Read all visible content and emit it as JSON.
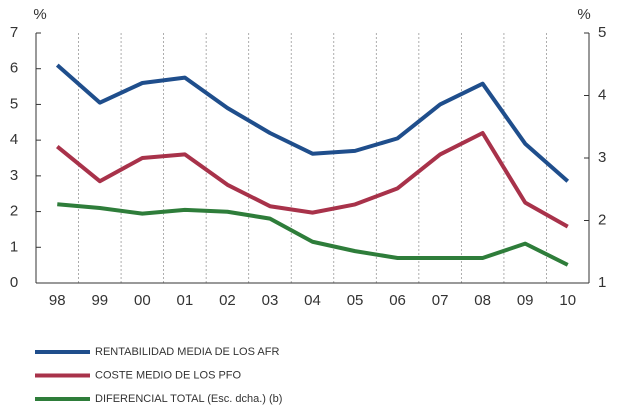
{
  "chart_data": {
    "type": "line",
    "y_label": "%",
    "y2_label": "%",
    "categories": [
      "98",
      "99",
      "00",
      "01",
      "02",
      "03",
      "04",
      "05",
      "06",
      "07",
      "08",
      "09",
      "10"
    ],
    "series": [
      {
        "name": "RENTABILIDAD MEDIA DE LOS AFR",
        "color": "#1f4e8c",
        "values": [
          6.1,
          5.05,
          5.6,
          5.75,
          4.9,
          4.2,
          3.62,
          3.7,
          4.05,
          5.0,
          5.58,
          3.9,
          2.85
        ]
      },
      {
        "name": "COSTE MEDIO DE LOS PFO",
        "color": "#a8324a",
        "values": [
          3.82,
          2.85,
          3.5,
          3.6,
          2.75,
          2.15,
          1.97,
          2.2,
          2.65,
          3.6,
          4.2,
          2.25,
          1.58
        ]
      },
      {
        "name": "DIFERENCIAL TOTAL (Esc. dcha.) (b)",
        "color": "#2e7d3a",
        "axis": "y2",
        "values": [
          2.26,
          2.2,
          2.11,
          2.17,
          2.14,
          2.03,
          1.66,
          1.51,
          1.4,
          1.4,
          1.4,
          1.63,
          1.29
        ]
      }
    ],
    "ylim": [
      0,
      7
    ],
    "yticks": [
      0,
      1,
      2,
      3,
      4,
      5,
      6,
      7
    ],
    "y2lim": [
      1,
      5
    ],
    "y2ticks": [
      1,
      2,
      3,
      4,
      5
    ],
    "grid": true
  }
}
